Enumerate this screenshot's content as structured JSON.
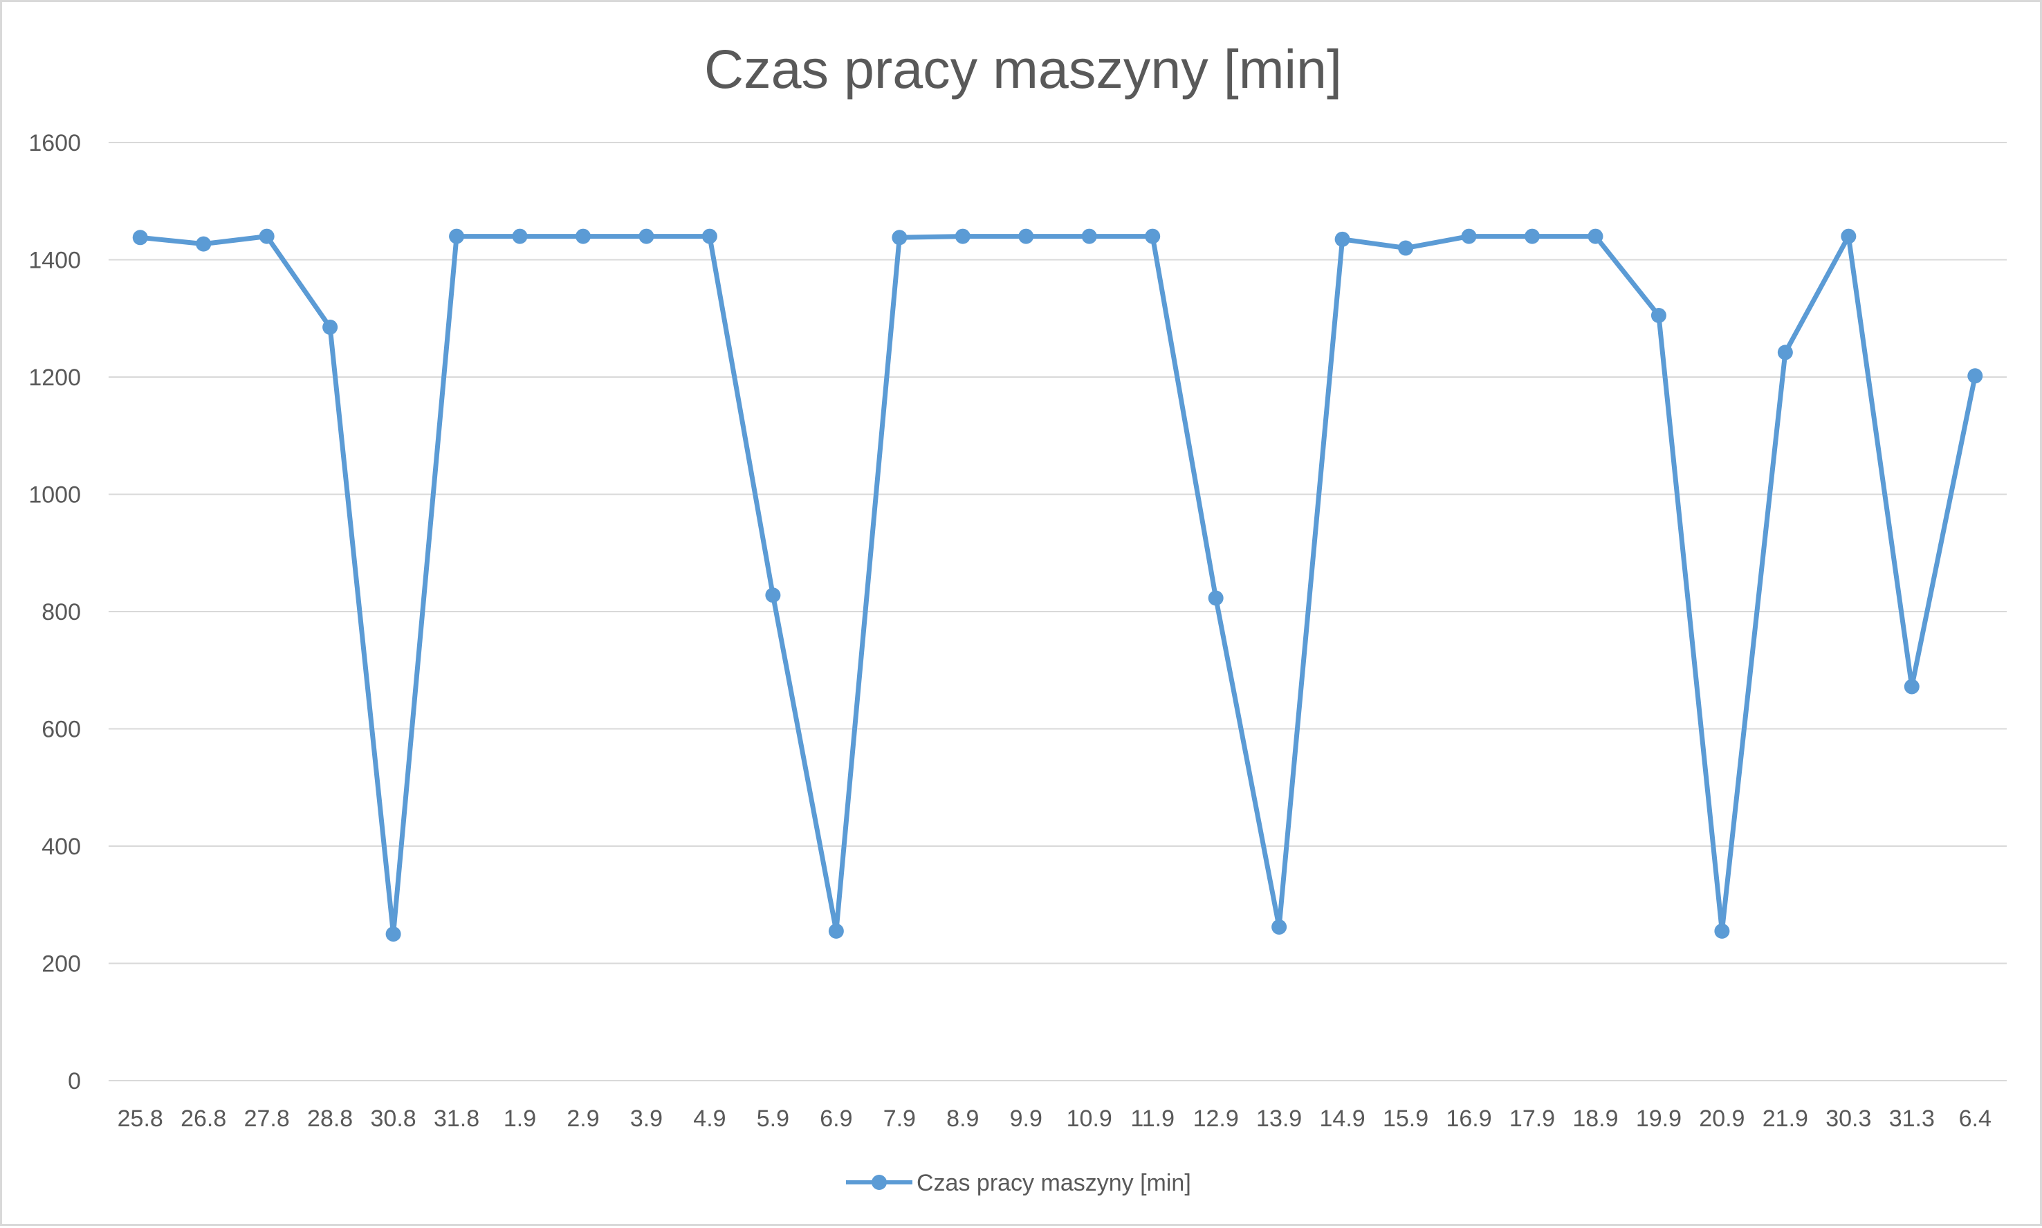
{
  "chart_data": {
    "type": "line",
    "title": "Czas pracy maszyny [min]",
    "xlabel": "",
    "ylabel": "",
    "ylim": [
      0,
      1600
    ],
    "yticks": [
      0,
      200,
      400,
      600,
      800,
      1000,
      1200,
      1400,
      1600
    ],
    "grid": true,
    "legend_position": "bottom",
    "categories": [
      "25.8",
      "26.8",
      "27.8",
      "28.8",
      "30.8",
      "31.8",
      "1.9",
      "2.9",
      "3.9",
      "4.9",
      "5.9",
      "6.9",
      "7.9",
      "8.9",
      "9.9",
      "10.9",
      "11.9",
      "12.9",
      "13.9",
      "14.9",
      "15.9",
      "16.9",
      "17.9",
      "18.9",
      "19.9",
      "20.9",
      "21.9",
      "30.3",
      "31.3",
      "6.4"
    ],
    "series": [
      {
        "name": "Czas pracy maszyny [min]",
        "color": "#5b9bd5",
        "values": [
          1438,
          1427,
          1440,
          1285,
          250,
          1440,
          1440,
          1440,
          1440,
          1440,
          828,
          255,
          1438,
          1440,
          1440,
          1440,
          1440,
          823,
          262,
          1435,
          1420,
          1440,
          1440,
          1440,
          1305,
          255,
          1242,
          1440,
          672,
          1202
        ]
      }
    ]
  }
}
